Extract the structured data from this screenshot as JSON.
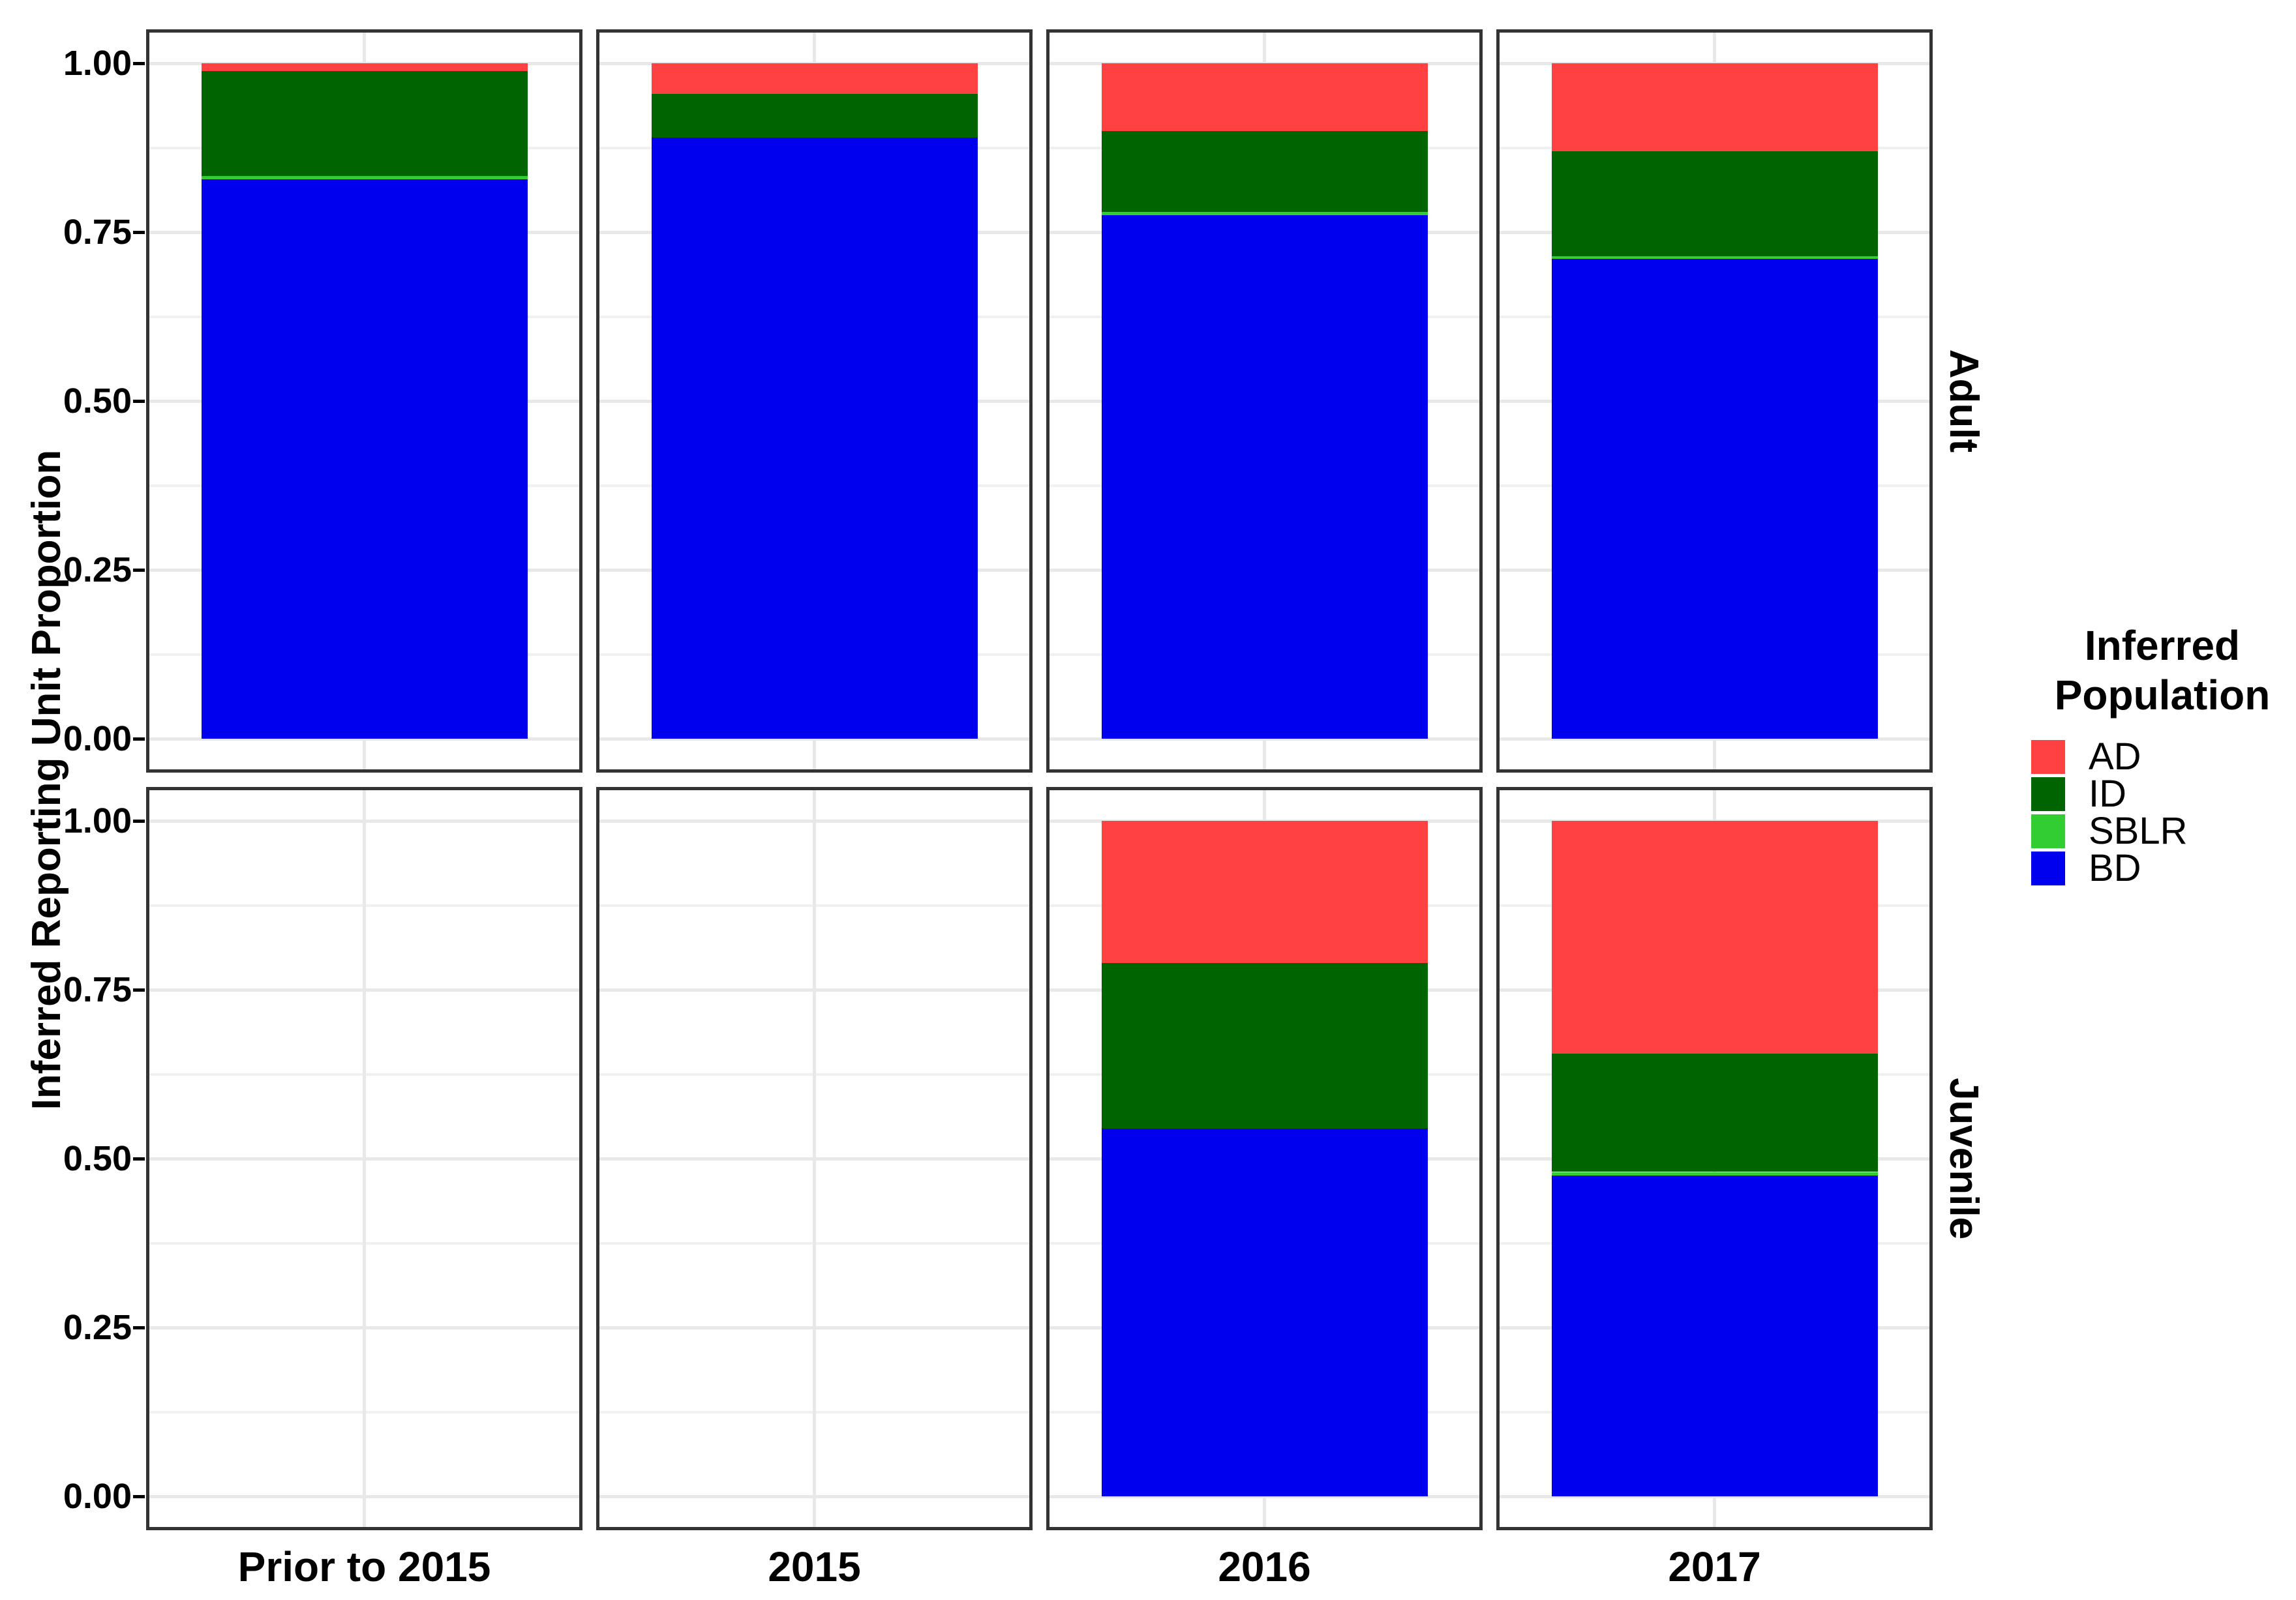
{
  "figure": {
    "y_axis_title": "Inferred Reporting Unit Proportion",
    "legend": {
      "title_line1": "Inferred",
      "title_line2": "Population",
      "entries": [
        {
          "label": "AD",
          "color": "#FF4141"
        },
        {
          "label": "ID",
          "color": "#006400"
        },
        {
          "label": "SBLR",
          "color": "#32CD32"
        },
        {
          "label": "BD",
          "color": "#0000EE"
        }
      ]
    }
  },
  "chart_data": {
    "type": "bar",
    "stacked": true,
    "orientation": "vertical",
    "title": "",
    "xlabel": "",
    "ylabel": "Inferred Reporting Unit Proportion",
    "ylim": [
      0,
      1
    ],
    "yticks": [
      {
        "value": 0.0,
        "label": "0.00"
      },
      {
        "value": 0.25,
        "label": "0.25"
      },
      {
        "value": 0.5,
        "label": "0.50"
      },
      {
        "value": 0.75,
        "label": "0.75"
      },
      {
        "value": 1.0,
        "label": "1.00"
      }
    ],
    "minor_grid_step": 0.125,
    "grid": true,
    "legend_position": "right",
    "legend_title": "Inferred Population",
    "categories": [
      "Prior to 2015",
      "2015",
      "2016",
      "2017"
    ],
    "facet_rows": [
      "Adult",
      "Juvenile"
    ],
    "series_stack_order_bottom_to_top": [
      "BD",
      "SBLR",
      "ID",
      "AD"
    ],
    "colors": {
      "AD": "#FF4141",
      "ID": "#006400",
      "SBLR": "#32CD32",
      "BD": "#0000EE"
    },
    "values": {
      "Adult": {
        "Prior to 2015": {
          "BD": 0.828,
          "SBLR": 0.005,
          "ID": 0.155,
          "AD": 0.012
        },
        "2015": {
          "BD": 0.89,
          "SBLR": 0.0,
          "ID": 0.065,
          "AD": 0.045
        },
        "2016": {
          "BD": 0.775,
          "SBLR": 0.005,
          "ID": 0.12,
          "AD": 0.1
        },
        "2017": {
          "BD": 0.71,
          "SBLR": 0.005,
          "ID": 0.155,
          "AD": 0.13
        }
      },
      "Juvenile": {
        "Prior to 2015": null,
        "2015": null,
        "2016": {
          "BD": 0.545,
          "SBLR": 0.0,
          "ID": 0.245,
          "AD": 0.21
        },
        "2017": {
          "BD": 0.475,
          "SBLR": 0.005,
          "ID": 0.175,
          "AD": 0.345
        }
      }
    }
  }
}
